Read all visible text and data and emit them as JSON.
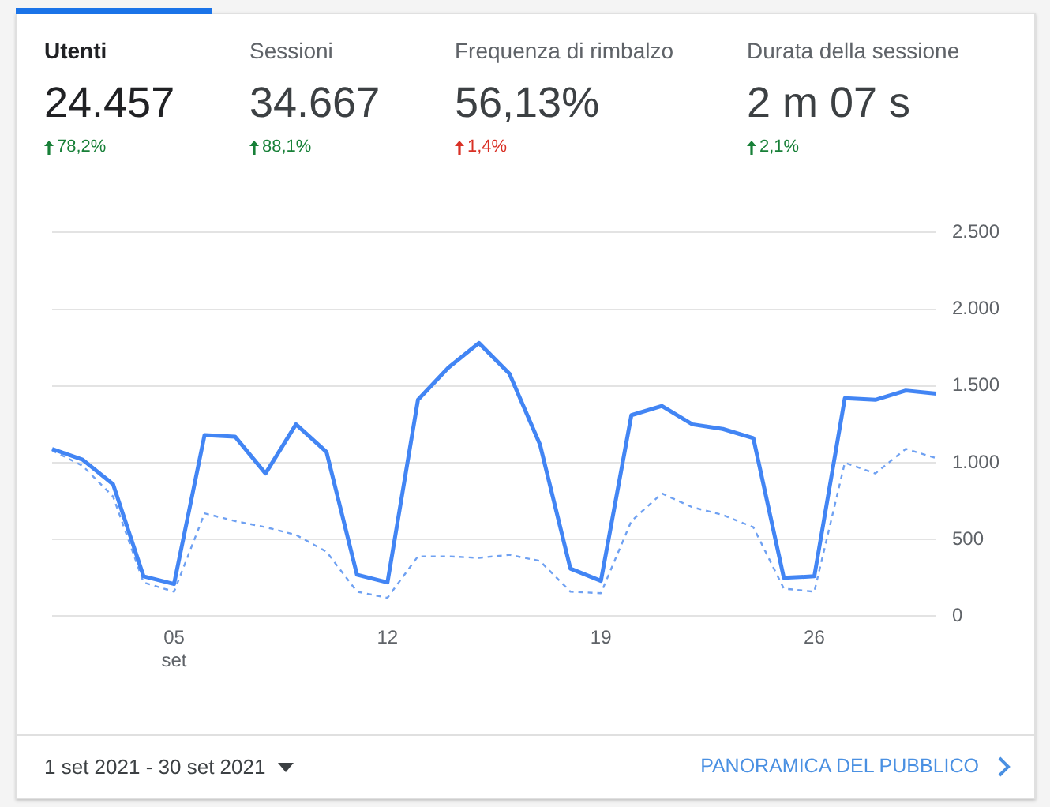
{
  "chart_data": {
    "type": "line",
    "categories": [
      null,
      null,
      null,
      null,
      "05\nset",
      null,
      null,
      null,
      null,
      null,
      null,
      "12",
      null,
      null,
      null,
      null,
      null,
      null,
      "19",
      null,
      null,
      null,
      null,
      null,
      null,
      "26",
      null,
      null,
      null,
      null
    ],
    "series": [
      {
        "color": "#4285f4",
        "line_style": "solid",
        "values": [
          1090,
          1020,
          860,
          260,
          210,
          1180,
          1170,
          930,
          1250,
          1070,
          270,
          220,
          1410,
          1620,
          1780,
          1580,
          1120,
          310,
          230,
          1310,
          1370,
          1250,
          1220,
          1160,
          250,
          260,
          1420,
          1410,
          1470,
          1450
        ]
      },
      {
        "color": "#6fa1f2",
        "line_style": "dashed",
        "values": [
          1080,
          980,
          780,
          220,
          160,
          670,
          620,
          580,
          530,
          420,
          160,
          120,
          390,
          390,
          380,
          400,
          360,
          160,
          150,
          620,
          800,
          710,
          660,
          580,
          180,
          160,
          1000,
          930,
          1090,
          1030
        ]
      }
    ],
    "ylim": [
      0,
      2500
    ],
    "yticks": [
      0,
      500,
      {
        "value": 1000,
        "label": "1.000"
      },
      {
        "value": 1500,
        "label": "1.500"
      },
      {
        "value": 2000,
        "label": "2.000"
      },
      {
        "value": 2500,
        "label": "2.500"
      }
    ],
    "grid": "y",
    "legend": false,
    "marker": "none",
    "annotations": [
      "Utenti",
      "24.457",
      "78,2%",
      "Sessioni",
      "34.667",
      "88,1%",
      "Frequenza di rimbalzo",
      "56,13%",
      "1,4%",
      "Durata della sessione",
      "2 m 07 s",
      "2,1%",
      "1 set 2021 - 30 set 2021",
      "PANORAMICA DEL PUBBLICO"
    ]
  }
}
